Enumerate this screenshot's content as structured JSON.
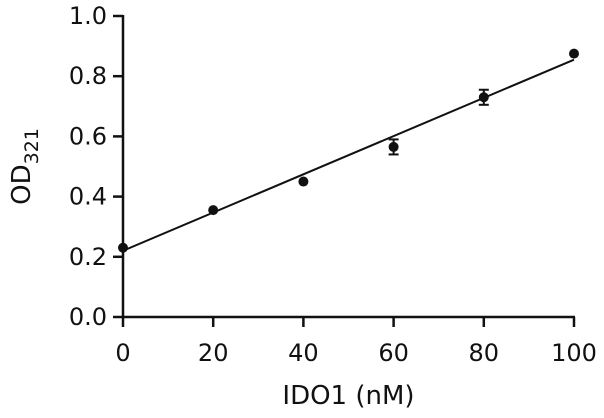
{
  "chart_data": {
    "type": "scatter",
    "xlabel": "IDO1 (nM)",
    "ylabel": {
      "main": "OD",
      "subscript": "321"
    },
    "xlim": [
      0,
      100
    ],
    "ylim": [
      0.0,
      1.0
    ],
    "x_ticks": [
      0,
      20,
      40,
      60,
      80,
      100
    ],
    "x_tick_labels": [
      "0",
      "20",
      "40",
      "60",
      "80",
      "100"
    ],
    "y_ticks": [
      0.0,
      0.2,
      0.4,
      0.6,
      0.8,
      1.0
    ],
    "y_tick_labels": [
      "0.0",
      "0.2",
      "0.4",
      "0.6",
      "0.8",
      "1.0"
    ],
    "grid": false,
    "legend": "none",
    "series": [
      {
        "x": [
          0,
          20,
          40,
          60,
          80,
          100
        ],
        "y": [
          0.23,
          0.355,
          0.45,
          0.565,
          0.73,
          0.875
        ],
        "error": [
          0.0,
          0.0,
          0.0,
          0.025,
          0.025,
          0.0
        ]
      }
    ],
    "fit_line": {
      "x": [
        0,
        100
      ],
      "y": [
        0.22,
        0.855
      ]
    }
  }
}
